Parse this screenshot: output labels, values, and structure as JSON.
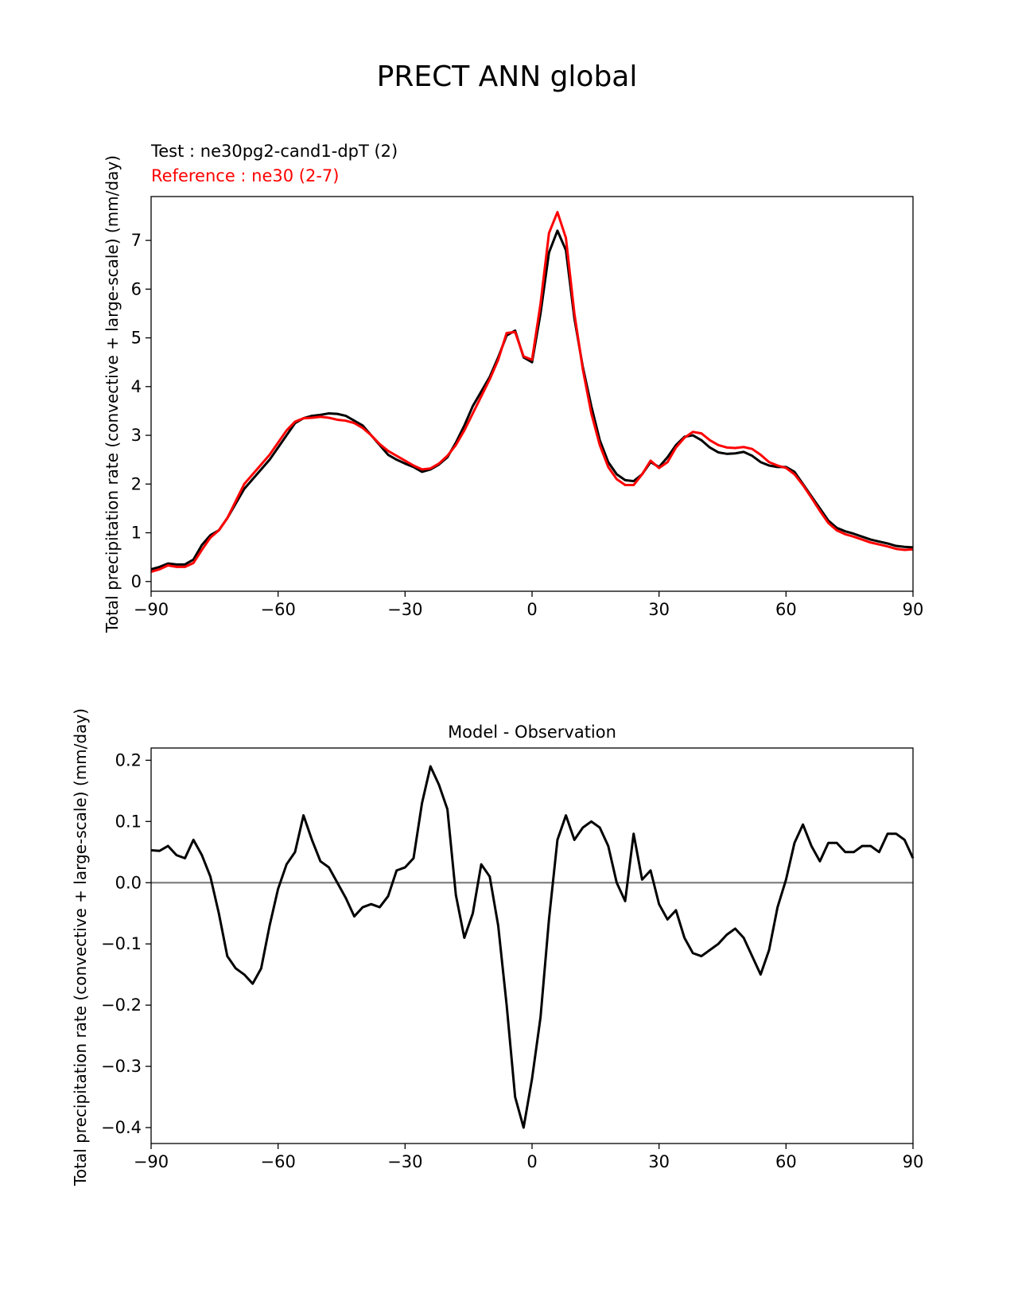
{
  "figure_title": "PRECT ANN global",
  "colors": {
    "test": "#000000",
    "reference": "#ff0000",
    "zero_line": "#808080"
  },
  "chart_data": [
    {
      "type": "line",
      "name": "climatology",
      "title": "",
      "legend": [
        "Test : ne30pg2-cand1-dpT (2)",
        "Reference : ne30 (2-7)"
      ],
      "xlabel": "",
      "ylabel": "Total precipitation rate (convective + large-scale) (mm/day)",
      "xlim": [
        -90,
        90
      ],
      "ylim": [
        -0.2,
        7.9
      ],
      "xticks": [
        -90,
        -60,
        -30,
        0,
        30,
        60,
        90
      ],
      "xtick_labels": [
        "−90",
        "−60",
        "−30",
        "0",
        "30",
        "60",
        "90"
      ],
      "yticks": [
        0,
        1,
        2,
        3,
        4,
        5,
        6,
        7
      ],
      "ytick_labels": [
        "0",
        "1",
        "2",
        "3",
        "4",
        "5",
        "6",
        "7"
      ],
      "grid": false,
      "series": [
        {
          "name": "Test : ne30pg2-cand1-dpT (2)",
          "color": "#000000",
          "x": [
            -90,
            -88,
            -86,
            -84,
            -82,
            -80,
            -78,
            -76,
            -74,
            -72,
            -70,
            -68,
            -66,
            -64,
            -62,
            -60,
            -58,
            -56,
            -54,
            -52,
            -50,
            -48,
            -46,
            -44,
            -42,
            -40,
            -38,
            -36,
            -34,
            -32,
            -30,
            -28,
            -26,
            -24,
            -22,
            -20,
            -18,
            -16,
            -14,
            -12,
            -10,
            -8,
            -6,
            -4,
            -2,
            0,
            2,
            4,
            6,
            8,
            10,
            12,
            14,
            16,
            18,
            20,
            22,
            24,
            26,
            28,
            30,
            32,
            34,
            36,
            38,
            40,
            42,
            44,
            46,
            48,
            50,
            52,
            54,
            56,
            58,
            60,
            62,
            64,
            66,
            68,
            70,
            72,
            74,
            76,
            78,
            80,
            82,
            84,
            86,
            88,
            90
          ],
          "y": [
            0.25,
            0.3,
            0.37,
            0.35,
            0.35,
            0.45,
            0.75,
            0.95,
            1.05,
            1.3,
            1.6,
            1.9,
            2.1,
            2.3,
            2.5,
            2.75,
            3.0,
            3.25,
            3.35,
            3.4,
            3.42,
            3.45,
            3.44,
            3.4,
            3.3,
            3.2,
            3.0,
            2.8,
            2.6,
            2.5,
            2.42,
            2.35,
            2.25,
            2.3,
            2.4,
            2.55,
            2.85,
            3.2,
            3.6,
            3.9,
            4.2,
            4.6,
            5.05,
            5.15,
            4.6,
            4.5,
            5.5,
            6.75,
            7.2,
            6.8,
            5.4,
            4.4,
            3.6,
            2.9,
            2.45,
            2.2,
            2.08,
            2.06,
            2.2,
            2.45,
            2.35,
            2.55,
            2.8,
            2.97,
            3.0,
            2.9,
            2.75,
            2.65,
            2.62,
            2.63,
            2.66,
            2.58,
            2.45,
            2.38,
            2.35,
            2.35,
            2.25,
            2.0,
            1.75,
            1.5,
            1.25,
            1.1,
            1.03,
            0.98,
            0.92,
            0.86,
            0.82,
            0.78,
            0.73,
            0.71,
            0.7
          ]
        },
        {
          "name": "Reference : ne30 (2-7)",
          "color": "#ff0000",
          "x": [
            -90,
            -88,
            -86,
            -84,
            -82,
            -80,
            -78,
            -76,
            -74,
            -72,
            -70,
            -68,
            -66,
            -64,
            -62,
            -60,
            -58,
            -56,
            -54,
            -52,
            -50,
            -48,
            -46,
            -44,
            -42,
            -40,
            -38,
            -36,
            -34,
            -32,
            -30,
            -28,
            -26,
            -24,
            -22,
            -20,
            -18,
            -16,
            -14,
            -12,
            -10,
            -8,
            -6,
            -4,
            -2,
            0,
            2,
            4,
            6,
            8,
            10,
            12,
            14,
            16,
            18,
            20,
            22,
            24,
            26,
            28,
            30,
            32,
            34,
            36,
            38,
            40,
            42,
            44,
            46,
            48,
            50,
            52,
            54,
            56,
            58,
            60,
            62,
            64,
            66,
            68,
            70,
            72,
            74,
            76,
            78,
            80,
            82,
            84,
            86,
            88,
            90
          ],
          "y": [
            0.2,
            0.25,
            0.33,
            0.3,
            0.3,
            0.38,
            0.65,
            0.9,
            1.05,
            1.3,
            1.65,
            2.0,
            2.2,
            2.4,
            2.6,
            2.85,
            3.1,
            3.28,
            3.35,
            3.36,
            3.38,
            3.36,
            3.32,
            3.3,
            3.25,
            3.15,
            3.0,
            2.82,
            2.68,
            2.58,
            2.48,
            2.38,
            2.3,
            2.32,
            2.42,
            2.58,
            2.8,
            3.1,
            3.45,
            3.8,
            4.15,
            4.55,
            5.1,
            5.12,
            4.62,
            4.55,
            5.7,
            7.15,
            7.58,
            7.05,
            5.5,
            4.35,
            3.45,
            2.8,
            2.35,
            2.1,
            1.98,
            1.98,
            2.2,
            2.48,
            2.33,
            2.45,
            2.75,
            2.95,
            3.07,
            3.04,
            2.9,
            2.8,
            2.75,
            2.74,
            2.76,
            2.72,
            2.6,
            2.45,
            2.38,
            2.33,
            2.2,
            1.98,
            1.72,
            1.45,
            1.2,
            1.05,
            0.97,
            0.92,
            0.86,
            0.8,
            0.76,
            0.72,
            0.67,
            0.65,
            0.66
          ]
        }
      ]
    },
    {
      "type": "line",
      "name": "difference",
      "title": "Model - Observation",
      "xlabel": "",
      "ylabel": "Total precipitation rate (convective + large-scale) (mm/day)",
      "xlim": [
        -90,
        90
      ],
      "ylim": [
        -0.426,
        0.22
      ],
      "xticks": [
        -90,
        -60,
        -30,
        0,
        30,
        60,
        90
      ],
      "xtick_labels": [
        "−90",
        "−60",
        "−30",
        "0",
        "30",
        "60",
        "90"
      ],
      "yticks": [
        0.2,
        0.1,
        0.0,
        -0.1,
        -0.2,
        -0.3,
        -0.4
      ],
      "ytick_labels": [
        "0.2",
        "0.1",
        "0.0",
        "−0.1",
        "−0.2",
        "−0.3",
        "−0.4"
      ],
      "zero_line": 0,
      "grid": false,
      "series": [
        {
          "name": "Model - Observation",
          "color": "#000000",
          "x": [
            -90,
            -88,
            -86,
            -84,
            -82,
            -80,
            -78,
            -76,
            -74,
            -72,
            -70,
            -68,
            -66,
            -64,
            -62,
            -60,
            -58,
            -56,
            -54,
            -52,
            -50,
            -48,
            -46,
            -44,
            -42,
            -40,
            -38,
            -36,
            -34,
            -32,
            -30,
            -28,
            -26,
            -24,
            -22,
            -20,
            -18,
            -16,
            -14,
            -12,
            -10,
            -8,
            -6,
            -4,
            -2,
            0,
            2,
            4,
            6,
            8,
            10,
            12,
            14,
            16,
            18,
            20,
            22,
            24,
            26,
            28,
            30,
            32,
            34,
            36,
            38,
            40,
            42,
            44,
            46,
            48,
            50,
            52,
            54,
            56,
            58,
            60,
            62,
            64,
            66,
            68,
            70,
            72,
            74,
            76,
            78,
            80,
            82,
            84,
            86,
            88,
            90
          ],
          "y": [
            0.053,
            0.052,
            0.06,
            0.045,
            0.04,
            0.07,
            0.045,
            0.01,
            -0.05,
            -0.12,
            -0.14,
            -0.15,
            -0.165,
            -0.14,
            -0.07,
            -0.01,
            0.03,
            0.05,
            0.11,
            0.07,
            0.035,
            0.025,
            0.0,
            -0.025,
            -0.055,
            -0.04,
            -0.035,
            -0.04,
            -0.022,
            0.02,
            0.025,
            0.04,
            0.13,
            0.19,
            0.16,
            0.12,
            -0.02,
            -0.09,
            -0.05,
            0.03,
            0.01,
            -0.07,
            -0.2,
            -0.35,
            -0.4,
            -0.32,
            -0.22,
            -0.06,
            0.07,
            0.11,
            0.07,
            0.09,
            0.1,
            0.09,
            0.06,
            0.0,
            -0.03,
            0.08,
            0.005,
            0.02,
            -0.035,
            -0.06,
            -0.045,
            -0.09,
            -0.115,
            -0.12,
            -0.11,
            -0.1,
            -0.085,
            -0.075,
            -0.09,
            -0.12,
            -0.15,
            -0.11,
            -0.04,
            0.005,
            0.065,
            0.095,
            0.06,
            0.035,
            0.065,
            0.065,
            0.05,
            0.05,
            0.06,
            0.06,
            0.05,
            0.08,
            0.08,
            0.07,
            0.04
          ]
        }
      ]
    }
  ]
}
